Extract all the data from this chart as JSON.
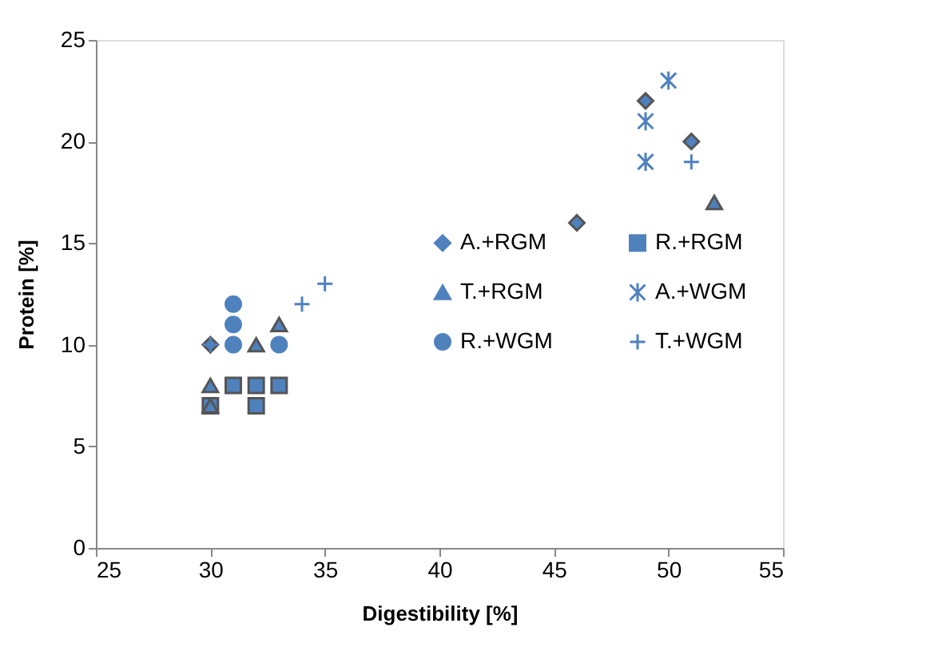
{
  "chart_data": {
    "type": "scatter",
    "xlabel": "Digestibility [%]",
    "ylabel": "Protein [%]",
    "xlim": [
      25,
      55
    ],
    "xticks": [
      25,
      30,
      35,
      40,
      45,
      50,
      55
    ],
    "ylim": [
      0,
      25
    ],
    "yticks": [
      0,
      5,
      10,
      15,
      20,
      25
    ],
    "grid": false,
    "legend": "right",
    "series": [
      {
        "name": "A.+RGM",
        "color": "#4f81bd",
        "marker": "diamond",
        "x": [
          30,
          46,
          49,
          51
        ],
        "values": [
          10,
          16,
          22,
          20
        ]
      },
      {
        "name": "R.+RGM",
        "color": "#4f81bd",
        "marker": "square",
        "x": [
          30,
          31,
          32,
          32,
          33
        ],
        "values": [
          7,
          8,
          8,
          7,
          8
        ]
      },
      {
        "name": "T.+RGM",
        "color": "#4f81bd",
        "marker": "triangle",
        "x": [
          30,
          30,
          32,
          33,
          52
        ],
        "values": [
          8,
          7,
          10,
          11,
          17
        ]
      },
      {
        "name": "A.+WGM",
        "color": "#4f81bd",
        "marker": "cross",
        "x": [
          49,
          49,
          50
        ],
        "values": [
          21,
          19,
          23
        ]
      },
      {
        "name": "R.+WGM",
        "color": "#4f81bd",
        "marker": "circle",
        "x": [
          31,
          31,
          31,
          33
        ],
        "values": [
          12,
          11,
          10,
          10
        ]
      },
      {
        "name": "T.+WGM",
        "color": "#4f81bd",
        "marker": "cross",
        "x": [
          30,
          34,
          35,
          51
        ],
        "values": [
          10,
          12,
          13,
          19
        ]
      }
    ]
  }
}
